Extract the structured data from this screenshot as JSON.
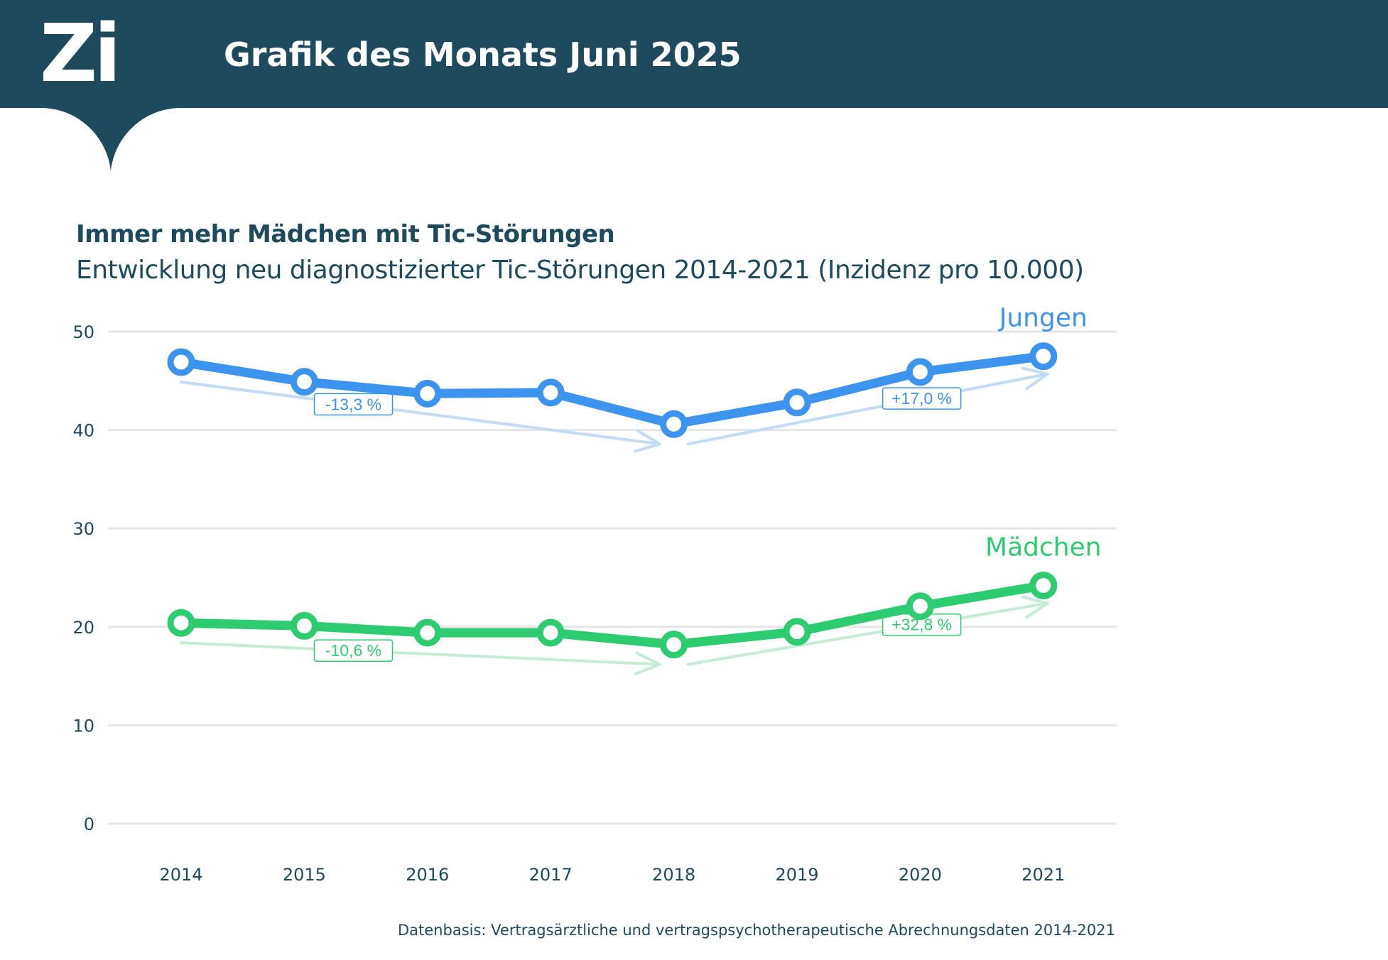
{
  "header": {
    "logo_text": "Zi",
    "title": "Grafik des Monats Juni 2025",
    "background_color": "#1d4a5c"
  },
  "chart_data": {
    "type": "line",
    "title": "Immer mehr Mädchen mit Tic-Störungen",
    "subtitle": "Entwicklung neu diagnostizierter Tic-Störungen 2014-2021 (Inzidenz pro 10.000)",
    "xlabel": "",
    "ylabel": "",
    "categories": [
      "2014",
      "2015",
      "2016",
      "2017",
      "2018",
      "2019",
      "2020",
      "2021"
    ],
    "ylim": [
      0,
      50
    ],
    "yticks": [
      "0",
      "10",
      "20",
      "30",
      "40",
      "50"
    ],
    "grid": true,
    "series": [
      {
        "name": "Jungen",
        "color": "#3d94ee",
        "trend_color": "#c2dcf6",
        "values": [
          46.9,
          44.9,
          43.7,
          43.8,
          40.6,
          42.8,
          45.9,
          47.5
        ],
        "annotations": [
          {
            "label": "-13,3 %",
            "from": "2014",
            "to": "2018"
          },
          {
            "label": "+17,0 %",
            "from": "2018",
            "to": "2021"
          }
        ]
      },
      {
        "name": "Mädchen",
        "color": "#2ecc71",
        "trend_color": "#c4edd4",
        "values": [
          20.4,
          20.1,
          19.4,
          19.4,
          18.2,
          19.5,
          22.1,
          24.2
        ],
        "annotations": [
          {
            "label": "-10,6 %",
            "from": "2014",
            "to": "2018"
          },
          {
            "label": "+32,8 %",
            "from": "2018",
            "to": "2021"
          }
        ]
      }
    ]
  },
  "source": "Datenbasis: Vertragsärztliche und vertragspsychotherapeutische Abrechnungsdaten 2014-2021"
}
